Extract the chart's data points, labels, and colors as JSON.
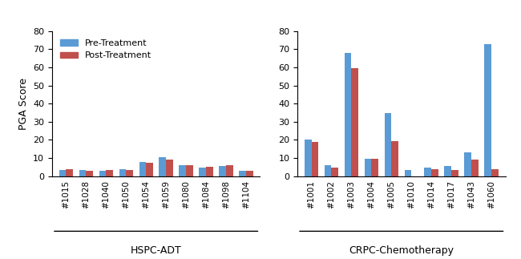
{
  "hspc_labels": [
    "#1015",
    "#1028",
    "#1040",
    "#1050",
    "#1054",
    "#1059",
    "#1080",
    "#1084",
    "#1098",
    "#1104"
  ],
  "hspc_pre": [
    3.5,
    3.5,
    3.0,
    4.0,
    8.0,
    10.5,
    6.0,
    4.5,
    5.5,
    3.0
  ],
  "hspc_post": [
    4.0,
    3.0,
    3.5,
    3.5,
    7.5,
    9.0,
    6.0,
    5.0,
    6.0,
    3.0
  ],
  "crpc_labels": [
    "#1001",
    "#1002",
    "#1003",
    "#1004",
    "#1005",
    "#1010",
    "#1014",
    "#1017",
    "#1043",
    "#1060"
  ],
  "crpc_pre": [
    20.0,
    6.0,
    68.0,
    9.5,
    35.0,
    3.5,
    4.5,
    5.5,
    13.0,
    73.0
  ],
  "crpc_post": [
    19.0,
    4.5,
    59.5,
    9.5,
    19.5,
    0.0,
    4.0,
    3.5,
    9.0,
    4.0
  ],
  "pre_color": "#5B9BD5",
  "post_color": "#C0504D",
  "ylabel": "PGA Score",
  "hspc_group_label": "HSPC-ADT",
  "crpc_group_label": "CRPC-Chemotherapy",
  "legend_pre": "Pre-Treatment",
  "legend_post": "Post-Treatment",
  "ylim": [
    0,
    80
  ],
  "yticks": [
    0,
    10,
    20,
    30,
    40,
    50,
    60,
    70,
    80
  ],
  "bar_width": 0.35,
  "figsize": [
    6.5,
    3.23
  ],
  "dpi": 100
}
